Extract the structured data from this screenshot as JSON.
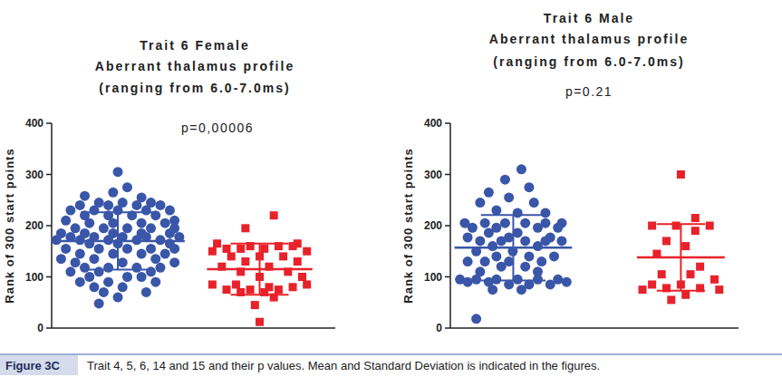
{
  "chart_data": [
    {
      "type": "scatter",
      "title": "Trait 6 Female",
      "subtitle": [
        "Aberrant thalamus profile",
        "(ranging from 6.0-7.0ms)"
      ],
      "annotations": [
        "p=0,00006"
      ],
      "y_label": "Rank of 300 start points",
      "xlim": [
        0,
        3
      ],
      "ylim": [
        0,
        400
      ],
      "yticks": [
        0,
        100,
        200,
        300,
        400
      ],
      "tick_labels": "y",
      "series": [
        {
          "color": "#3a56a8",
          "marker": "circle",
          "mean": 170,
          "sd": 56,
          "x": [
            0.7,
            0.8,
            0.65,
            0.35,
            0.95,
            0.5,
            0.75,
            1.05,
            0.3,
            0.6,
            0.9,
            1.15,
            0.2,
            0.45,
            0.7,
            1.0,
            1.25,
            0.35,
            0.6,
            0.85,
            1.1,
            0.15,
            1.3,
            0.4,
            0.65,
            0.95,
            1.2,
            0.25,
            0.55,
            0.8,
            1.05,
            1.3,
            0.1,
            0.35,
            0.65,
            0.95,
            1.25,
            0.2,
            0.45,
            0.75,
            1.0,
            1.35,
            0.05,
            0.3,
            0.6,
            0.9,
            1.15,
            0.4,
            0.7,
            1.25,
            0.15,
            0.5,
            0.8,
            1.05,
            1.3,
            0.3,
            0.65,
            0.95,
            1.2,
            0.1,
            0.45,
            1.1,
            0.25,
            0.75,
            1.3,
            0.35,
            0.6,
            0.9,
            1.15,
            0.2,
            0.5,
            1.05,
            0.4,
            0.8,
            0.95,
            0.3,
            0.6,
            1.1,
            0.45,
            0.75,
            0.55,
            1.0,
            0.7,
            0.5
          ],
          "values": [
            305,
            275,
            265,
            258,
            255,
            245,
            245,
            245,
            240,
            240,
            240,
            240,
            230,
            230,
            230,
            230,
            230,
            220,
            220,
            220,
            220,
            210,
            210,
            205,
            205,
            205,
            205,
            195,
            195,
            195,
            195,
            195,
            185,
            185,
            185,
            185,
            185,
            178,
            178,
            178,
            178,
            178,
            172,
            172,
            172,
            172,
            172,
            165,
            165,
            165,
            155,
            155,
            155,
            155,
            155,
            145,
            145,
            145,
            145,
            135,
            135,
            135,
            128,
            128,
            128,
            118,
            118,
            118,
            118,
            110,
            110,
            110,
            100,
            100,
            100,
            90,
            90,
            90,
            80,
            80,
            70,
            70,
            60,
            48
          ]
        },
        {
          "color": "#e8222a",
          "marker": "square",
          "mean": 115,
          "sd": 50,
          "x": [
            2.35,
            2.05,
            1.75,
            2.6,
            2.1,
            2.4,
            2.55,
            1.85,
            2.0,
            2.25,
            1.7,
            2.7,
            1.9,
            2.2,
            2.45,
            2.05,
            2.6,
            1.8,
            2.3,
            2.0,
            2.5,
            2.2,
            2.65,
            1.7,
            1.95,
            2.7,
            2.3,
            2.55,
            1.85,
            2.1,
            2.4,
            2.0,
            2.25,
            2.35,
            2.15,
            2.2
          ],
          "values": [
            220,
            195,
            165,
            165,
            160,
            160,
            160,
            155,
            155,
            155,
            150,
            150,
            140,
            140,
            140,
            130,
            130,
            120,
            120,
            110,
            110,
            100,
            100,
            85,
            85,
            85,
            80,
            80,
            75,
            75,
            75,
            70,
            70,
            60,
            45,
            12
          ]
        }
      ]
    },
    {
      "type": "scatter",
      "title": "Trait 6 Male",
      "subtitle": [
        "Aberrant thalamus profile",
        "(ranging from 6.0-7.0ms)"
      ],
      "annotations": [
        "p=0.21"
      ],
      "y_label": "Rank of 300 start points",
      "xlim": [
        0,
        3
      ],
      "ylim": [
        0,
        400
      ],
      "yticks": [
        0,
        100,
        200,
        300,
        400
      ],
      "tick_labels": "y",
      "series": [
        {
          "color": "#3a56a8",
          "marker": "circle",
          "mean": 157,
          "sd": 64,
          "x": [
            0.74,
            0.57,
            0.82,
            0.4,
            0.61,
            0.31,
            0.87,
            0.48,
            0.7,
            0.99,
            0.15,
            0.36,
            0.57,
            0.78,
            0.99,
            1.16,
            0.23,
            0.48,
            0.91,
            1.12,
            0.4,
            0.7,
            0.18,
            0.61,
            1.04,
            0.31,
            0.53,
            0.78,
            0.99,
            1.16,
            0.44,
            0.91,
            0.27,
            0.65,
            0.48,
            0.82,
            1.08,
            0.18,
            0.36,
            0.61,
            0.95,
            0.53,
            0.78,
            0.31,
            0.91,
            0.1,
            0.27,
            0.48,
            0.7,
            0.91,
            1.12,
            0.18,
            0.4,
            1.21,
            0.61,
            0.82,
            1.04,
            0.44,
            0.74,
            0.27
          ],
          "values": [
            310,
            290,
            275,
            265,
            255,
            245,
            245,
            230,
            225,
            225,
            205,
            205,
            205,
            205,
            205,
            205,
            196,
            196,
            196,
            196,
            186,
            186,
            177,
            177,
            177,
            170,
            170,
            170,
            170,
            170,
            160,
            160,
            150,
            150,
            140,
            140,
            140,
            130,
            130,
            130,
            130,
            120,
            120,
            110,
            110,
            95,
            95,
            95,
            95,
            95,
            95,
            90,
            90,
            90,
            85,
            85,
            85,
            75,
            75,
            18
          ]
        },
        {
          "color": "#e8222a",
          "marker": "square",
          "mean": 138,
          "sd": 65,
          "x": [
            2.4,
            2.55,
            2.1,
            2.35,
            2.7,
            2.55,
            2.25,
            2.45,
            2.15,
            2.6,
            2.2,
            2.5,
            2.75,
            2.1,
            2.4,
            2.25,
            2.6,
            2.0,
            2.8,
            2.45,
            2.3
          ],
          "values": [
            300,
            215,
            200,
            200,
            200,
            190,
            170,
            160,
            145,
            120,
            105,
            105,
            95,
            85,
            85,
            78,
            78,
            75,
            75,
            65,
            55
          ]
        }
      ]
    }
  ],
  "caption": {
    "label": "Figure 3C",
    "text": "Trait 4, 5, 6, 14 and 15 and their p values. Mean and Standard Deviation is indicated in the figures."
  }
}
